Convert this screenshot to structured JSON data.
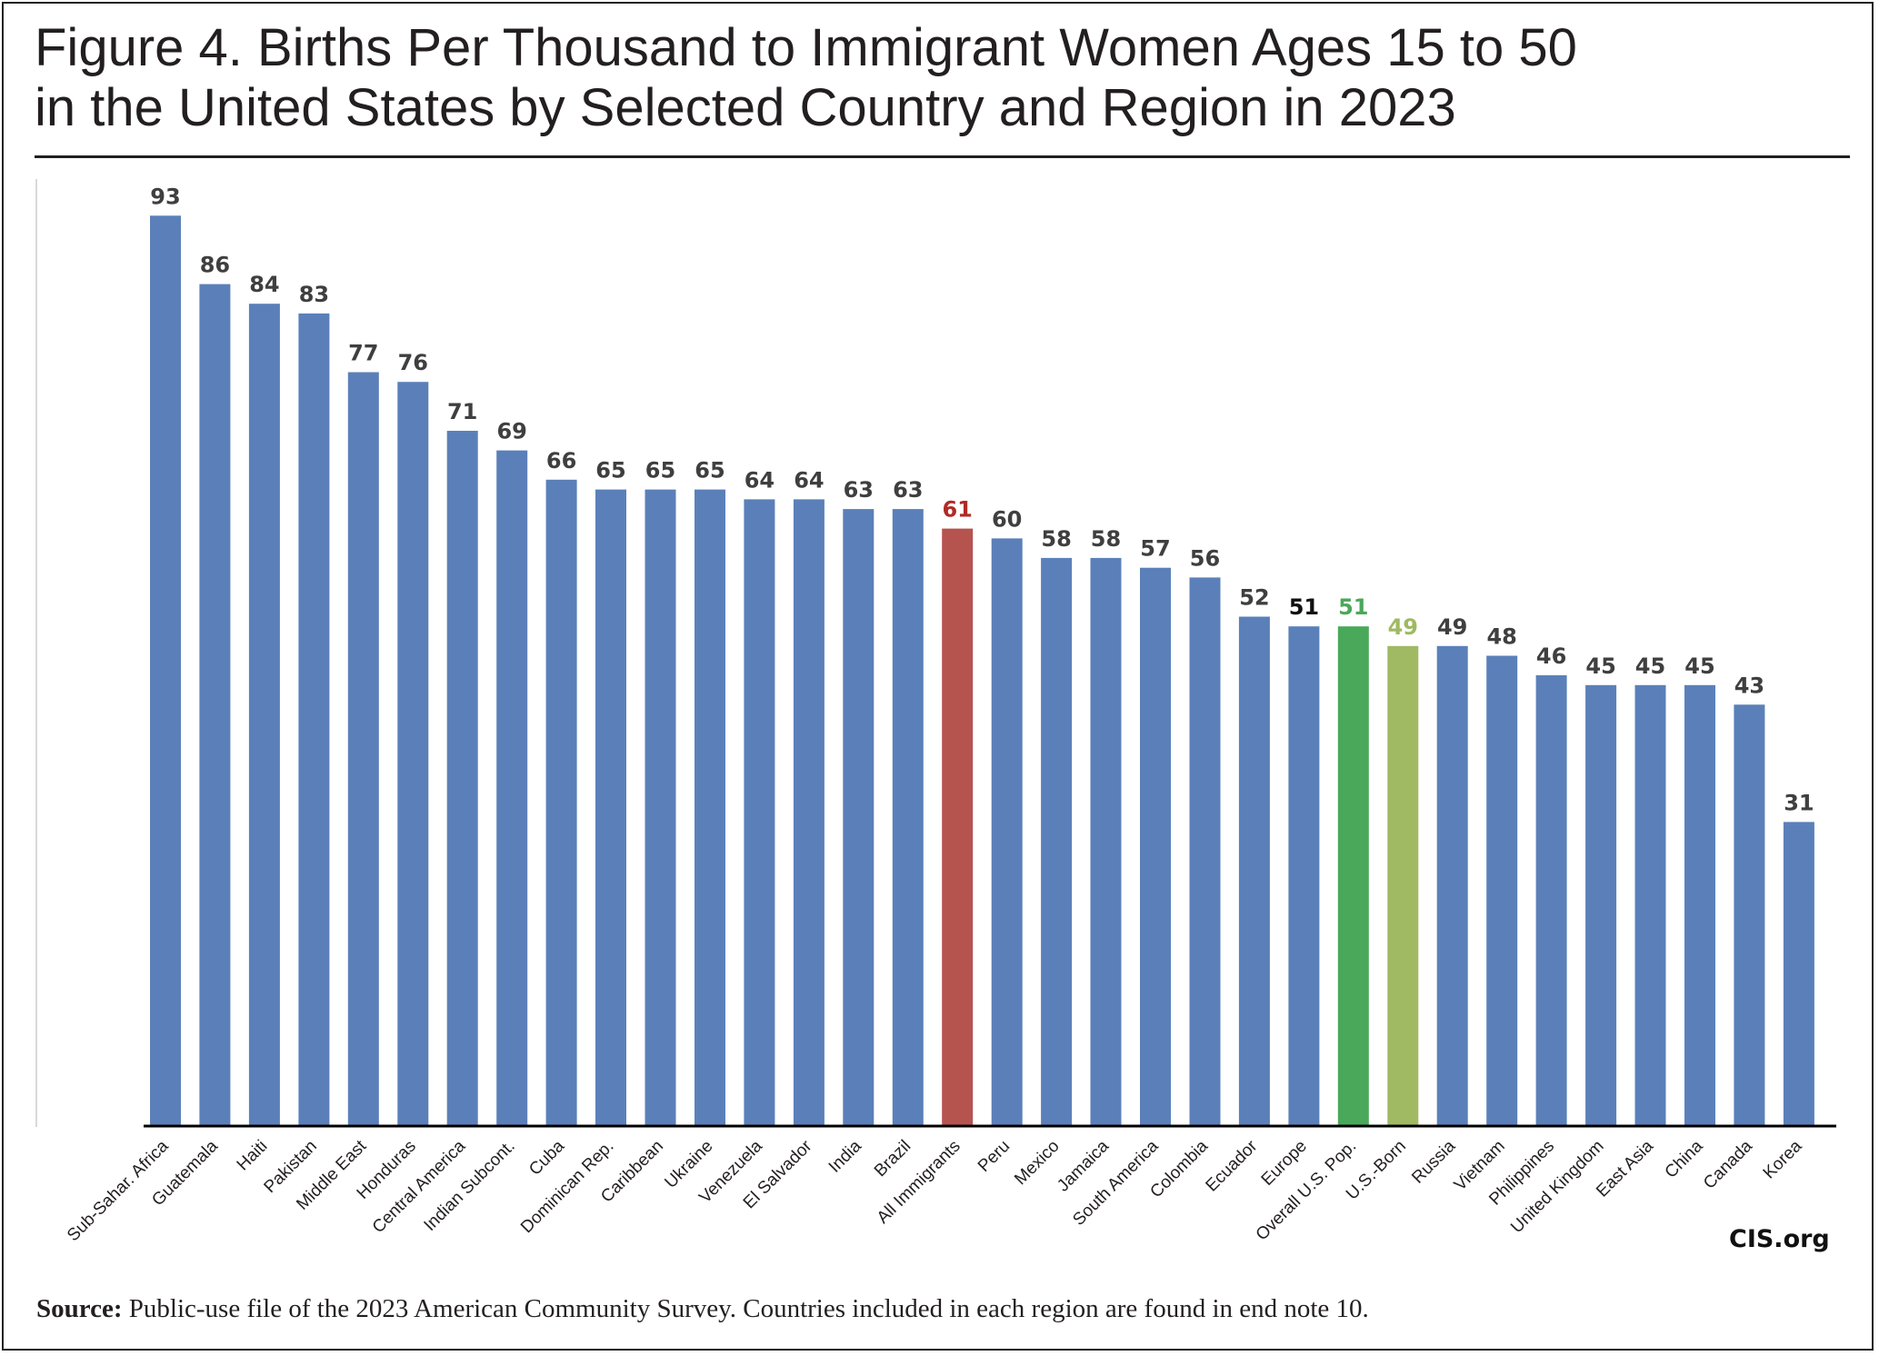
{
  "figure": {
    "title_line1": "Figure 4. Births Per Thousand to Immigrant Women Ages 15 to 50",
    "title_line2": "in the United States by Selected Country and Region in 2023",
    "source_label": "Source:",
    "source_text": " Public-use file of the 2023 American Community Survey.  Countries included in each region are found in end note 10.",
    "credit": "CIS.org"
  },
  "colors": {
    "default_bar": "#5b80b9",
    "highlight_immigrants": "#b5534f",
    "overall_pop": "#4aa85a",
    "us_born": "#9fba62",
    "label_default": "#3f3f3f",
    "label_immigrants": "#b12a25",
    "label_overall": "#4aa85a",
    "label_us_born": "#9fba62",
    "label_europe": "#111111"
  },
  "chart_data": {
    "type": "bar",
    "title": "Figure 4. Births Per Thousand to Immigrant Women Ages 15 to 50 in the United States by Selected Country and Region in 2023",
    "xlabel": "",
    "ylabel": "",
    "ylim": [
      0,
      100
    ],
    "grid": false,
    "legend": "none",
    "categories": [
      "Sub-Sahar. Africa",
      "Guatemala",
      "Haiti",
      "Pakistan",
      "Middle East",
      "Honduras",
      "Central America",
      "Indian Subcont.",
      "Cuba",
      "Dominican Rep.",
      "Caribbean",
      "Ukraine",
      "Venezuela",
      "El Salvador",
      "India",
      "Brazil",
      "All Immigrants",
      "Peru",
      "Mexico",
      "Jamaica",
      "South America",
      "Colombia",
      "Ecuador",
      "Europe",
      "Overall U.S. Pop.",
      "U.S.-Born",
      "Russia",
      "Vietnam",
      "Philippines",
      "United Kingdom",
      "East Asia",
      "China",
      "Canada",
      "Korea"
    ],
    "values": [
      93,
      86,
      84,
      83,
      77,
      76,
      71,
      69,
      66,
      65,
      65,
      65,
      64,
      64,
      63,
      63,
      61,
      60,
      58,
      58,
      57,
      56,
      52,
      51,
      51,
      49,
      49,
      48,
      46,
      45,
      45,
      45,
      43,
      31
    ],
    "labels": [
      "93",
      "86",
      "84",
      "83",
      "77",
      "76",
      "71",
      "69",
      "66",
      "65",
      "65",
      "65",
      "64",
      "64",
      "63",
      "63",
      "61",
      "60",
      "58",
      "58",
      "57",
      "56",
      "52",
      "51",
      "51",
      "49",
      "49",
      "48",
      "46",
      "45",
      "45",
      "45",
      "43",
      "31"
    ],
    "highlights": {
      "All Immigrants": {
        "bar": "highlight_immigrants",
        "label": "label_immigrants"
      },
      "Europe": {
        "bar": "default_bar",
        "label": "label_europe"
      },
      "Overall U.S. Pop.": {
        "bar": "overall_pop",
        "label": "label_overall"
      },
      "U.S.-Born": {
        "bar": "us_born",
        "label": "label_us_born"
      }
    }
  }
}
